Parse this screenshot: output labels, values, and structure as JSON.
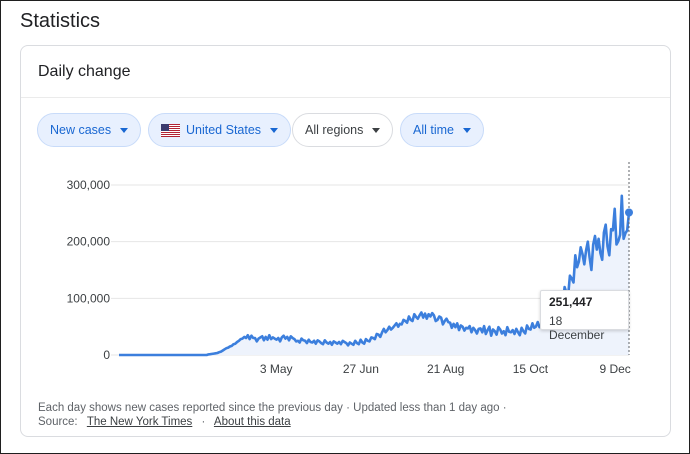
{
  "page_title": "Statistics",
  "card": {
    "title": "Daily change"
  },
  "filters": [
    {
      "label": "New cases",
      "icon": "",
      "style": "blue"
    },
    {
      "label": "United States",
      "icon": "us-flag-icon",
      "style": "blue"
    },
    {
      "label": "All regions",
      "icon": "",
      "style": "gray"
    },
    {
      "label": "All time",
      "icon": "",
      "style": "blue"
    }
  ],
  "tooltip": {
    "value": "251,447",
    "date": "18 December"
  },
  "footer": {
    "note": "Each day shows new cases reported since the previous day · Updated less than 1 day ago ·",
    "source_label": "Source:",
    "source_link": "The New York Times",
    "separator": "·",
    "about_link": "About this data"
  },
  "colors": {
    "line": "#3c7fdd",
    "area": "#eef3fc",
    "grid": "#e6e6e6",
    "accent": "#1967d2"
  },
  "chart_data": {
    "type": "line",
    "title": "",
    "xlabel": "",
    "ylabel": "",
    "ylim": [
      0,
      300000
    ],
    "yticks": [
      0,
      100000,
      200000,
      300000
    ],
    "ytick_labels": [
      "0",
      "100,000",
      "200,000",
      "300,000"
    ],
    "xticks": [
      "3 May",
      "27 Jun",
      "21 Aug",
      "15 Oct",
      "9 Dec"
    ],
    "x_start": "2020-01-22",
    "x_end": "2020-12-18",
    "grid": true,
    "series": [
      {
        "name": "",
        "values": [
          0,
          0,
          0,
          0,
          0,
          0,
          0,
          0,
          0,
          0,
          0,
          0,
          0,
          0,
          0,
          0,
          0,
          0,
          0,
          0,
          0,
          0,
          0,
          0,
          0,
          0,
          0,
          0,
          0,
          0,
          0,
          0,
          0,
          0,
          0,
          0,
          0,
          0,
          0,
          0,
          0,
          0,
          0,
          0,
          0,
          0,
          0,
          0,
          0,
          0,
          1000,
          1500,
          2000,
          2500,
          3000,
          3500,
          5000,
          6000,
          8000,
          10000,
          12000,
          13000,
          15000,
          16000,
          19000,
          20000,
          23000,
          25000,
          28000,
          29000,
          32000,
          30000,
          35000,
          28000,
          34000,
          30000,
          30000,
          24000,
          29000,
          31000,
          33000,
          26000,
          32000,
          27000,
          35000,
          28000,
          31000,
          29000,
          27000,
          30000,
          24000,
          31000,
          34000,
          29000,
          32000,
          26000,
          33000,
          30000,
          28000,
          24000,
          25000,
          22000,
          29000,
          26000,
          25000,
          21000,
          27000,
          23000,
          22000,
          25000,
          20000,
          26000,
          24000,
          21000,
          19000,
          26000,
          22000,
          20000,
          23000,
          18000,
          24000,
          22000,
          20000,
          23000,
          19000,
          25000,
          23000,
          21000,
          17000,
          22000,
          20000,
          18000,
          25000,
          21000,
          19000,
          27000,
          22000,
          20000,
          28000,
          25000,
          24000,
          31000,
          30000,
          28000,
          37000,
          36000,
          32000,
          40000,
          46000,
          40000,
          44000,
          50000,
          45000,
          48000,
          52000,
          56000,
          50000,
          55000,
          54000,
          62000,
          60000,
          57000,
          68000,
          62000,
          60000,
          72000,
          67000,
          64000,
          70000,
          75000,
          66000,
          73000,
          64000,
          72000,
          68000,
          74000,
          70000,
          60000,
          62000,
          68000,
          66000,
          54000,
          60000,
          64000,
          58000,
          57000,
          48000,
          55000,
          49000,
          56000,
          44000,
          52000,
          50000,
          43000,
          48000,
          47000,
          51000,
          40000,
          48000,
          44000,
          38000,
          46000,
          47000,
          40000,
          51000,
          37000,
          44000,
          50000,
          34000,
          45000,
          42000,
          36000,
          49000,
          45000,
          38000,
          42000,
          35000,
          49000,
          41000,
          40000,
          44000,
          37000,
          46000,
          40000,
          35000,
          48000,
          42000,
          38000,
          52000,
          46000,
          45000,
          56000,
          48000,
          50000,
          58000,
          49000,
          53000,
          65000,
          55000,
          58000,
          70000,
          66000,
          61000,
          82000,
          79000,
          72000,
          98000,
          94000,
          86000,
          120000,
          110000,
          106000,
          140000,
          135000,
          128000,
          176000,
          155000,
          165000,
          190000,
          178000,
          160000,
          185000,
          200000,
          172000,
          150000,
          195000,
          210000,
          186000,
          205000,
          180000,
          168000,
          216000,
          230000,
          192000,
          176000,
          222000,
          220000,
          258000,
          195000,
          201000,
          212000,
          281000,
          205000,
          215000,
          220000,
          251447
        ]
      }
    ]
  }
}
